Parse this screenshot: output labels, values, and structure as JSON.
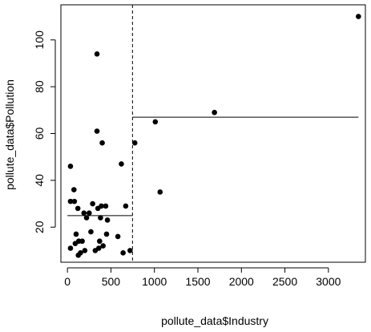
{
  "chart_data": {
    "type": "scatter",
    "title": "",
    "xlabel": "pollute_data$Industry",
    "ylabel": "pollute_data$Pollution",
    "xlim": [
      -75,
      3425
    ],
    "ylim": [
      5,
      115
    ],
    "grid": false,
    "legend": "none",
    "x_ticks": [
      0,
      500,
      1000,
      1500,
      2000,
      2500,
      3000
    ],
    "y_ticks": [
      20,
      40,
      60,
      80,
      100
    ],
    "points": [
      {
        "x": 35,
        "y": 46
      },
      {
        "x": 35,
        "y": 31
      },
      {
        "x": 35,
        "y": 11
      },
      {
        "x": 75,
        "y": 36
      },
      {
        "x": 80,
        "y": 31
      },
      {
        "x": 90,
        "y": 13
      },
      {
        "x": 100,
        "y": 17
      },
      {
        "x": 120,
        "y": 28
      },
      {
        "x": 125,
        "y": 8
      },
      {
        "x": 130,
        "y": 14
      },
      {
        "x": 150,
        "y": 9
      },
      {
        "x": 170,
        "y": 14
      },
      {
        "x": 190,
        "y": 26
      },
      {
        "x": 200,
        "y": 10
      },
      {
        "x": 220,
        "y": 24
      },
      {
        "x": 250,
        "y": 26
      },
      {
        "x": 270,
        "y": 18
      },
      {
        "x": 290,
        "y": 30
      },
      {
        "x": 320,
        "y": 10
      },
      {
        "x": 340,
        "y": 94
      },
      {
        "x": 340,
        "y": 61
      },
      {
        "x": 350,
        "y": 28
      },
      {
        "x": 360,
        "y": 11
      },
      {
        "x": 370,
        "y": 14
      },
      {
        "x": 380,
        "y": 24
      },
      {
        "x": 390,
        "y": 29
      },
      {
        "x": 400,
        "y": 56
      },
      {
        "x": 410,
        "y": 12
      },
      {
        "x": 440,
        "y": 29
      },
      {
        "x": 450,
        "y": 17
      },
      {
        "x": 460,
        "y": 23
      },
      {
        "x": 580,
        "y": 16
      },
      {
        "x": 620,
        "y": 47
      },
      {
        "x": 640,
        "y": 9
      },
      {
        "x": 670,
        "y": 29
      },
      {
        "x": 720,
        "y": 10
      },
      {
        "x": 775,
        "y": 56
      },
      {
        "x": 1010,
        "y": 65
      },
      {
        "x": 1065,
        "y": 35
      },
      {
        "x": 1690,
        "y": 69
      },
      {
        "x": 3345,
        "y": 110
      }
    ],
    "split_line": {
      "x": 748,
      "style": "dashed"
    },
    "segments": [
      {
        "x_start": 0,
        "x_end": 748,
        "y": 24.9
      },
      {
        "x_start": 748,
        "x_end": 3345,
        "y": 67
      }
    ]
  }
}
